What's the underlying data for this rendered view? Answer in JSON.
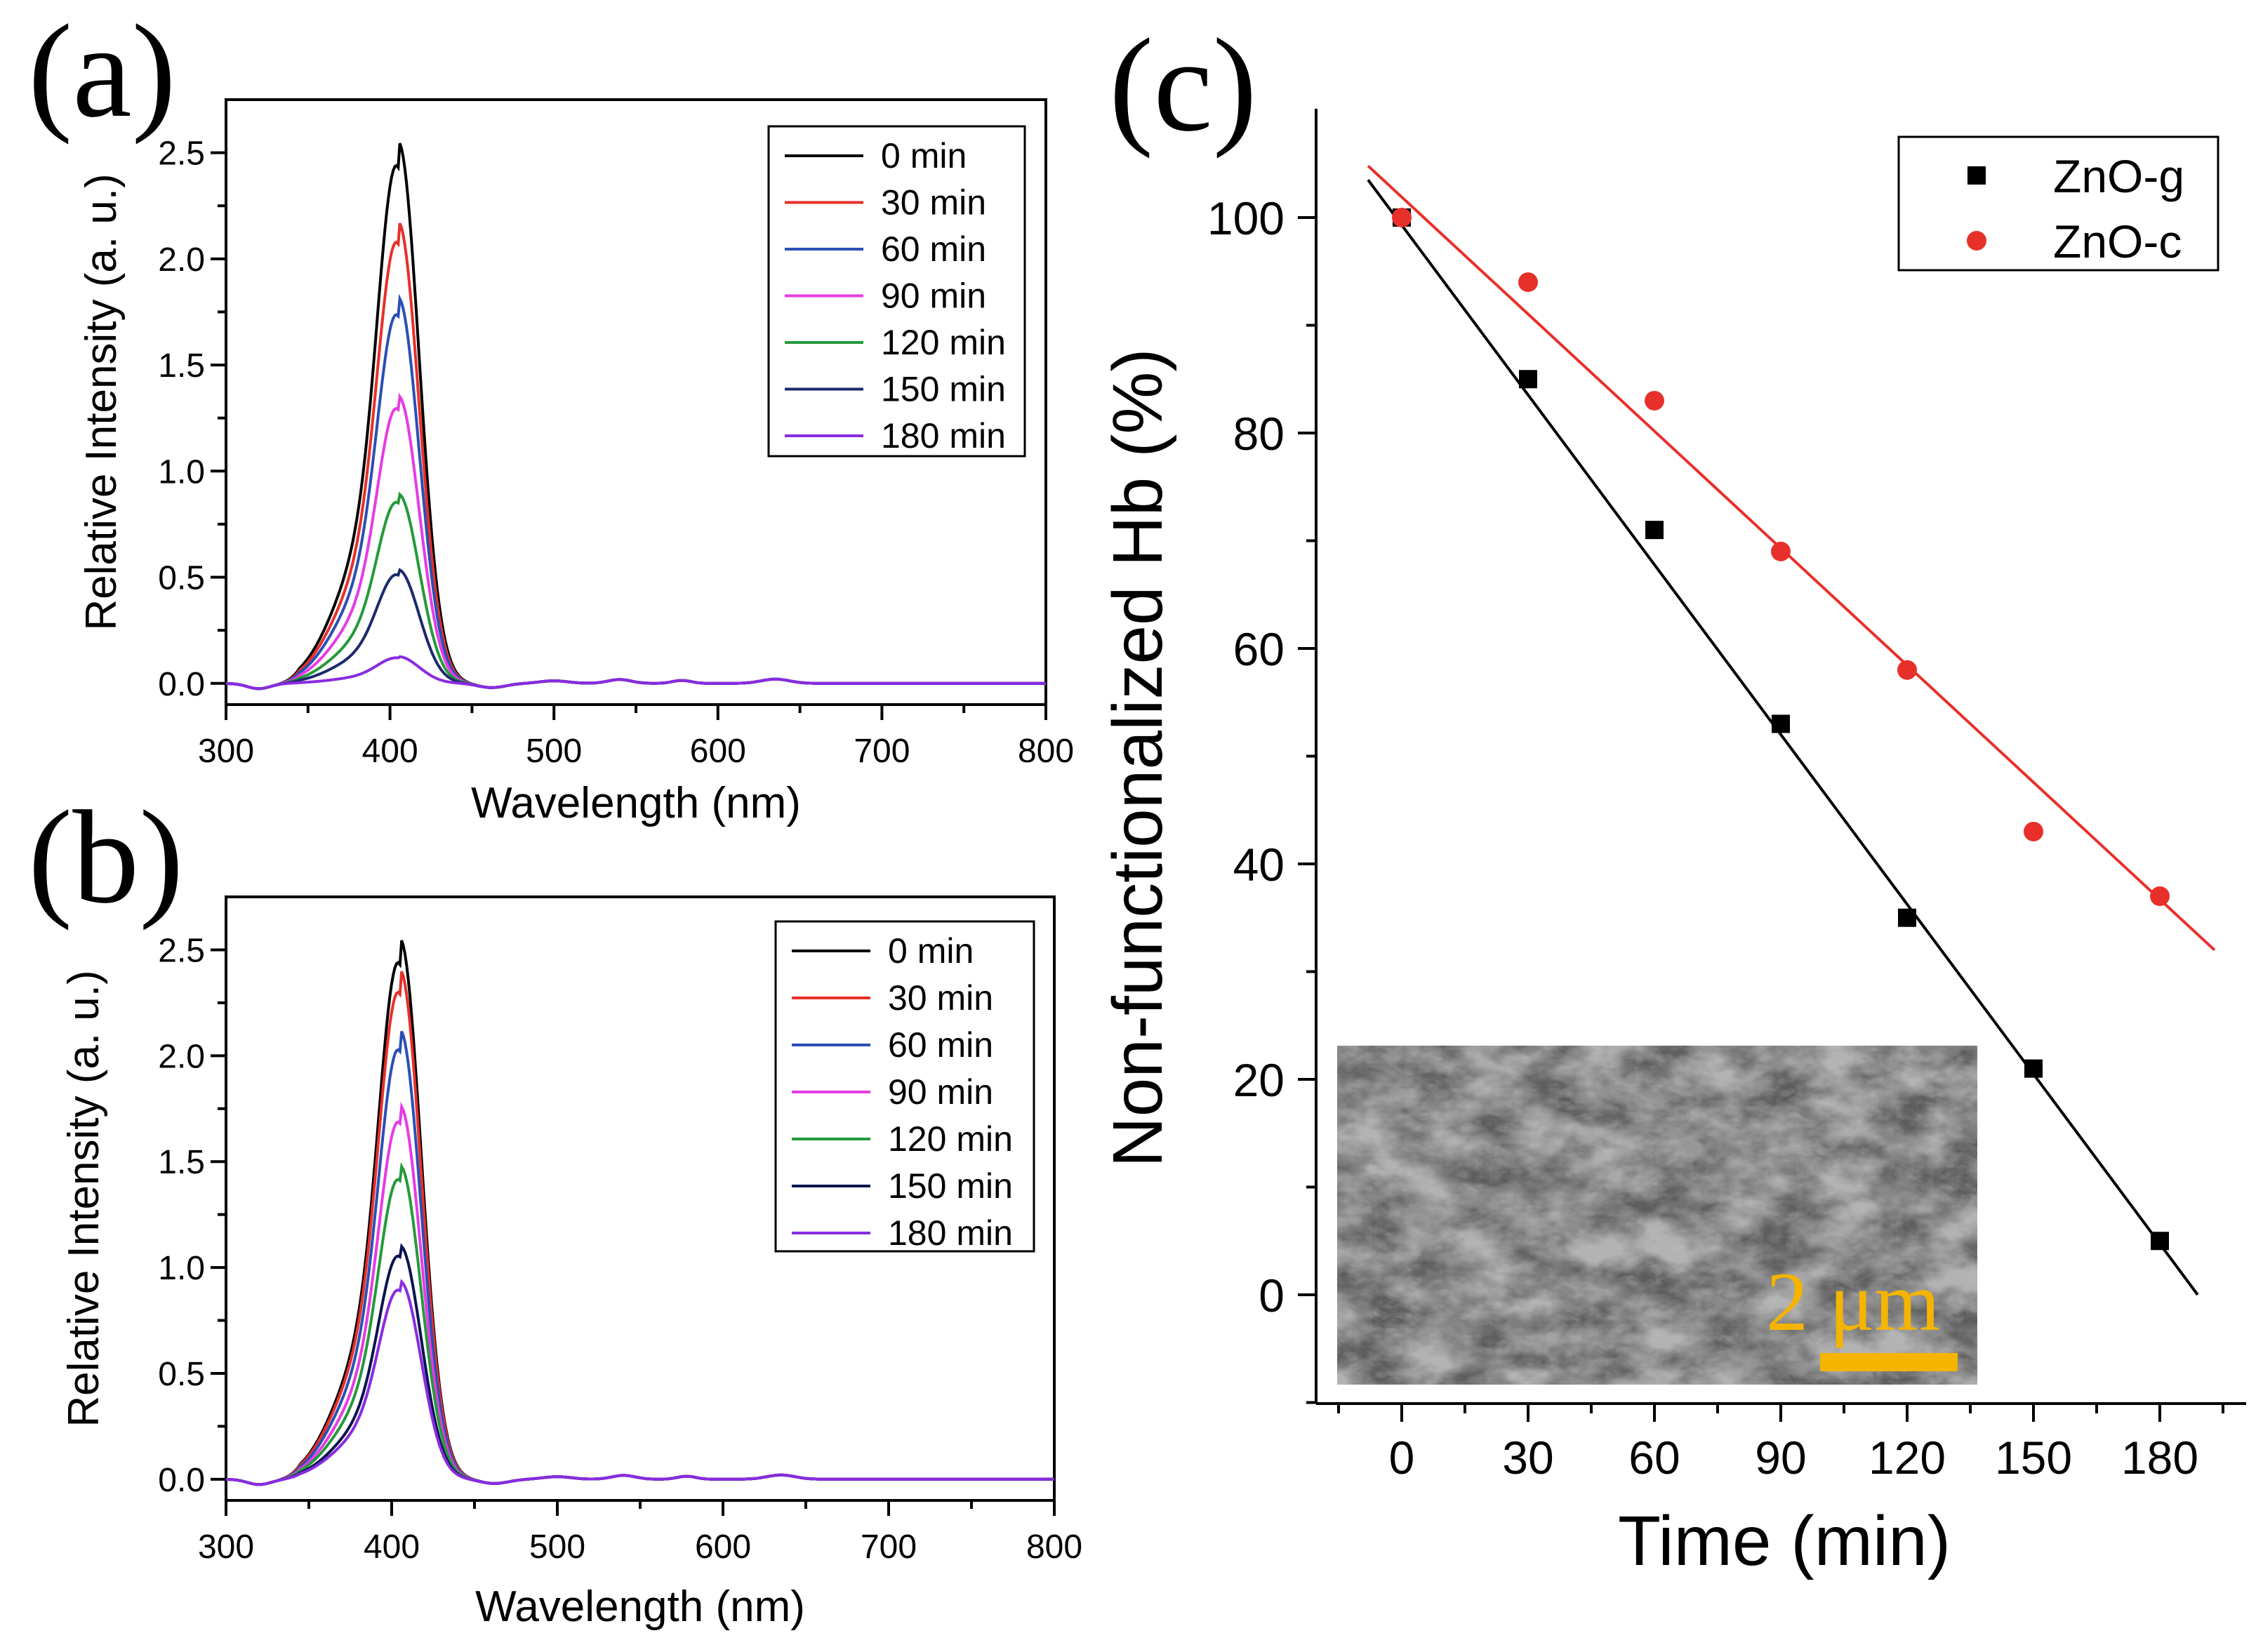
{
  "chart_data": [
    {
      "type": "line",
      "panel_label": "(a)",
      "xlabel": "Wavelength (nm)",
      "ylabel": "Relative Intensity (a. u.)",
      "xlim": [
        300,
        800
      ],
      "ylim": [
        -0.1,
        2.75
      ],
      "xticks": [
        300,
        400,
        500,
        600,
        700,
        800
      ],
      "xtick_labels": [
        "300",
        "400",
        "500",
        "600",
        "700",
        "800"
      ],
      "yticks": [
        0.0,
        0.5,
        1.0,
        1.5,
        2.0,
        2.5
      ],
      "ytick_labels": [
        "0.0",
        "0.5",
        "1.0",
        "1.5",
        "2.0",
        "2.5"
      ],
      "grid": false,
      "legend": "top-right",
      "peak_wavelength_nm": 405,
      "series": [
        {
          "name": "0 min",
          "color": "#000000",
          "peak": 2.43
        },
        {
          "name": "30 min",
          "color": "#e8302a",
          "peak": 2.07
        },
        {
          "name": "60 min",
          "color": "#2b4fb5",
          "peak": 1.73
        },
        {
          "name": "90 min",
          "color": "#e63be6",
          "peak": 1.29
        },
        {
          "name": "120 min",
          "color": "#259a3a",
          "peak": 0.85
        },
        {
          "name": "150 min",
          "color": "#1b2a6b",
          "peak": 0.51
        },
        {
          "name": "180 min",
          "color": "#8a2be2",
          "peak": 0.12
        }
      ]
    },
    {
      "type": "line",
      "panel_label": "(b)",
      "xlabel": "Wavelength (nm)",
      "ylabel": "Relative Intensity (a. u.)",
      "xlim": [
        300,
        800
      ],
      "ylim": [
        -0.1,
        2.75
      ],
      "xticks": [
        300,
        400,
        500,
        600,
        700,
        800
      ],
      "xtick_labels": [
        "300",
        "400",
        "500",
        "600",
        "700",
        "800"
      ],
      "yticks": [
        0.0,
        0.5,
        1.0,
        1.5,
        2.0,
        2.5
      ],
      "ytick_labels": [
        "0.0",
        "0.5",
        "1.0",
        "1.5",
        "2.0",
        "2.5"
      ],
      "grid": false,
      "legend": "top-right",
      "peak_wavelength_nm": 405,
      "series": [
        {
          "name": "0 min",
          "color": "#000000",
          "peak": 2.43
        },
        {
          "name": "30 min",
          "color": "#e8302a",
          "peak": 2.29
        },
        {
          "name": "60 min",
          "color": "#2b4fb5",
          "peak": 2.02
        },
        {
          "name": "90 min",
          "color": "#e63be6",
          "peak": 1.68
        },
        {
          "name": "120 min",
          "color": "#259a3a",
          "peak": 1.41
        },
        {
          "name": "150 min",
          "color": "#0b1450",
          "peak": 1.05
        },
        {
          "name": "180 min",
          "color": "#8a2be2",
          "peak": 0.89
        }
      ]
    },
    {
      "type": "scatter",
      "panel_label": "(c)",
      "xlabel": "Time (min)",
      "ylabel": "Non-functionalized Hb (%)",
      "xlim": [
        -12,
        195
      ],
      "ylim": [
        -10,
        110
      ],
      "xticks": [
        0,
        30,
        60,
        90,
        120,
        150,
        180
      ],
      "xtick_labels": [
        "0",
        "30",
        "60",
        "90",
        "120",
        "150",
        "180"
      ],
      "yticks": [
        0,
        20,
        40,
        60,
        80,
        100
      ],
      "ytick_labels": [
        "0",
        "20",
        "40",
        "60",
        "80",
        "100"
      ],
      "grid": false,
      "legend": "top-right",
      "x": [
        0,
        30,
        60,
        90,
        120,
        150,
        180
      ],
      "series": [
        {
          "name": "ZnO-g",
          "marker": "square",
          "color": "#000000",
          "values": [
            100,
            85,
            71,
            53,
            35,
            21,
            5
          ],
          "fit": {
            "x0": -8,
            "y0": 103.5,
            "x1": 189,
            "y1": 0
          }
        },
        {
          "name": "ZnO-c",
          "marker": "circle",
          "color": "#e8302a",
          "values": [
            100,
            94,
            83,
            69,
            58,
            43,
            37
          ],
          "fit": {
            "x0": -8,
            "y0": 104.8,
            "x1": 193,
            "y1": 32
          }
        }
      ],
      "inset": {
        "kind": "SEM image",
        "scale_bar_label": "2 μm",
        "scale_bar_color": "#f4b400"
      }
    }
  ]
}
